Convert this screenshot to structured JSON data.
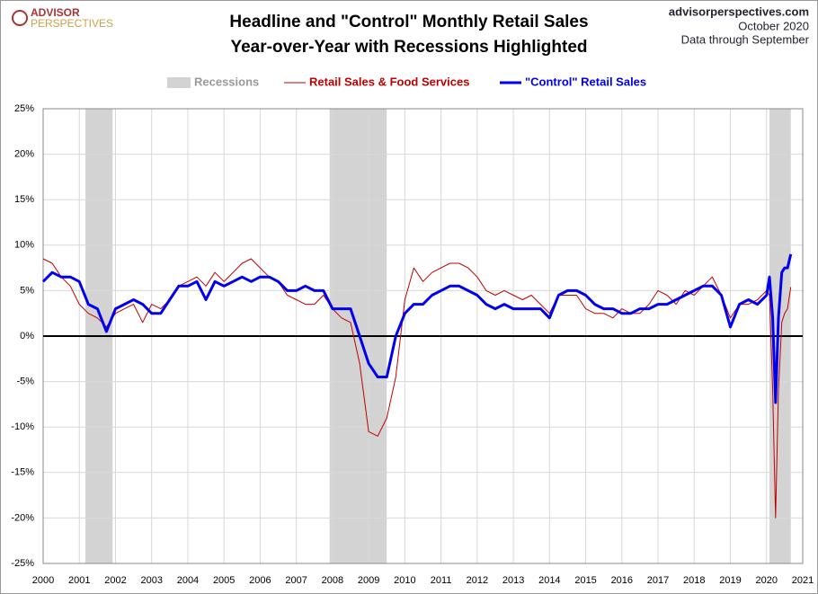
{
  "chart_data": {
    "type": "line",
    "title": "Headline and \"Control\" Monthly Retail Sales",
    "subtitle": "Year-over-Year with Recessions Highlighted",
    "logo": [
      "ADVISOR",
      "PERSPECTIVES"
    ],
    "source": [
      "advisorperspectives.com",
      "October 2020",
      "Data through  September"
    ],
    "recession_label": "Recessions",
    "recession_color": "#d3d3d3",
    "recessions": [
      [
        2001.17,
        2001.92
      ],
      [
        2007.92,
        2009.5
      ],
      [
        2020.08,
        2020.67
      ]
    ],
    "xlim": [
      2000,
      2021
    ],
    "xticks": [
      2000,
      2001,
      2002,
      2003,
      2004,
      2005,
      2006,
      2007,
      2008,
      2009,
      2010,
      2011,
      2012,
      2013,
      2014,
      2015,
      2016,
      2017,
      2018,
      2019,
      2020,
      2021
    ],
    "ylim": [
      -25,
      25
    ],
    "yticks": [
      {
        "value": -25,
        "label": "-25%"
      },
      {
        "value": -20,
        "label": "-20%"
      },
      {
        "value": -15,
        "label": "-15%"
      },
      {
        "value": -10,
        "label": "-10%"
      },
      {
        "value": -5,
        "label": "-5%"
      },
      {
        "value": 0,
        "label": "0%"
      },
      {
        "value": 5,
        "label": "5%"
      },
      {
        "value": 10,
        "label": "10%"
      },
      {
        "value": 15,
        "label": "15%"
      },
      {
        "value": 20,
        "label": "20%"
      },
      {
        "value": 25,
        "label": "25%"
      }
    ],
    "grid": true,
    "x": [
      2000,
      2000.25,
      2000.5,
      2000.75,
      2001,
      2001.25,
      2001.5,
      2001.75,
      2002,
      2002.25,
      2002.5,
      2002.75,
      2003,
      2003.25,
      2003.5,
      2003.75,
      2004,
      2004.25,
      2004.5,
      2004.75,
      2005,
      2005.25,
      2005.5,
      2005.75,
      2006,
      2006.25,
      2006.5,
      2006.75,
      2007,
      2007.25,
      2007.5,
      2007.75,
      2008,
      2008.25,
      2008.5,
      2008.75,
      2009,
      2009.25,
      2009.5,
      2009.75,
      2010,
      2010.25,
      2010.5,
      2010.75,
      2011,
      2011.25,
      2011.5,
      2011.75,
      2012,
      2012.25,
      2012.5,
      2012.75,
      2013,
      2013.25,
      2013.5,
      2013.75,
      2014,
      2014.25,
      2014.5,
      2014.75,
      2015,
      2015.25,
      2015.5,
      2015.75,
      2016,
      2016.25,
      2016.5,
      2016.75,
      2017,
      2017.25,
      2017.5,
      2017.75,
      2018,
      2018.25,
      2018.5,
      2018.75,
      2019,
      2019.25,
      2019.5,
      2019.75,
      2020,
      2020.08,
      2020.17,
      2020.25,
      2020.33,
      2020.42,
      2020.5,
      2020.58,
      2020.67
    ],
    "series": [
      {
        "name": "Retail Sales & Food Services",
        "color": "#c00000",
        "width": 1,
        "values": [
          8.5,
          8,
          6.5,
          5.5,
          3.5,
          2.5,
          2,
          1,
          2.5,
          3,
          3.5,
          1.5,
          3.5,
          3,
          4,
          5.5,
          6,
          6.5,
          5.5,
          7,
          6,
          7,
          8,
          8.5,
          7.5,
          6.5,
          6,
          4.5,
          4,
          3.5,
          3.5,
          4.5,
          3,
          2,
          1.5,
          -3,
          -10.5,
          -11,
          -9,
          -4.5,
          4,
          7.5,
          6,
          7,
          7.5,
          8,
          8,
          7.5,
          6.5,
          5,
          4.5,
          5,
          4.5,
          4,
          4.5,
          3.5,
          2.5,
          4.5,
          4.5,
          4.5,
          3,
          2.5,
          2.5,
          2,
          3,
          2.5,
          2.5,
          3.5,
          5,
          4.5,
          3.5,
          5,
          4.5,
          5.5,
          6.5,
          4.5,
          2,
          3.5,
          3.5,
          4,
          5,
          4.5,
          -6,
          -20,
          -6,
          1.5,
          2.5,
          3,
          5.4
        ]
      },
      {
        "name": "\"Control\" Retail Sales",
        "color": "#0000ee",
        "width": 3,
        "values": [
          6,
          7,
          6.5,
          6.5,
          6,
          3.5,
          3,
          0.5,
          3,
          3.5,
          4,
          3.5,
          2.5,
          2.5,
          4,
          5.5,
          5.5,
          6,
          4,
          6,
          5.5,
          6,
          6.5,
          6,
          6.5,
          6.5,
          6,
          5,
          5,
          5.5,
          5,
          5,
          3,
          3,
          3,
          0,
          -3,
          -4.5,
          -4.5,
          0,
          2.5,
          3.5,
          3.5,
          4.5,
          5,
          5.5,
          5.5,
          5,
          4.5,
          3.5,
          3,
          3.5,
          3,
          3,
          3,
          3,
          2,
          4.5,
          5,
          5,
          4.5,
          3.5,
          3,
          3,
          2.5,
          2.5,
          3,
          3,
          3.5,
          3.5,
          4,
          4.5,
          5,
          5.5,
          5.5,
          4.5,
          1,
          3.5,
          4,
          3.5,
          4.5,
          6.5,
          2,
          -7.3,
          2,
          7,
          7.5,
          7.5,
          9
        ]
      }
    ]
  }
}
